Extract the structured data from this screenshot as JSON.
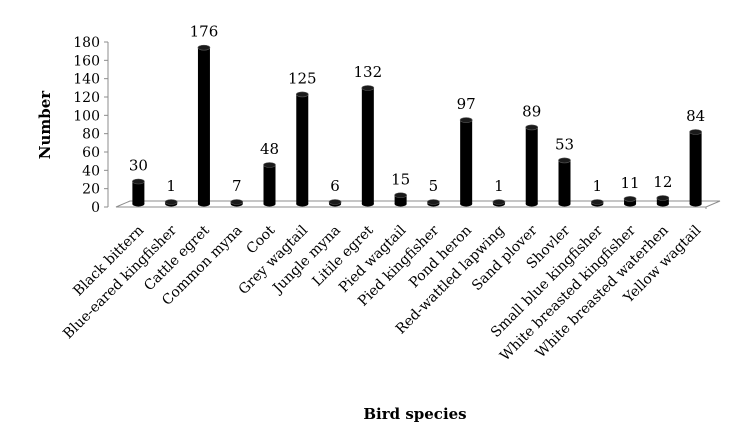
{
  "chart_data": {
    "type": "bar",
    "title": "",
    "xlabel": "Bird species",
    "ylabel": "Number",
    "ylim": [
      0,
      180
    ],
    "ytick_step": 20,
    "grid": false,
    "legend": "none",
    "bar_color": "#000000",
    "categories": [
      "Black bittern",
      "Blue-eared kingfisher",
      "Cattle  egret",
      "Common myna",
      "Coot",
      "Grey wagtail",
      "Jungle myna",
      "Litile egret",
      "Pied  wagtail",
      "Pied kingfisher",
      "Pond  heron",
      "Red-wattled lapwing",
      "Sand plover",
      "Shovler",
      "Small blue kingfisher",
      "White breasted kingfisher",
      "White breasted waterhen",
      "Yellow wagtail"
    ],
    "values": [
      30,
      1,
      176,
      7,
      48,
      125,
      6,
      132,
      15,
      5,
      97,
      1,
      89,
      53,
      1,
      11,
      12,
      84
    ]
  }
}
